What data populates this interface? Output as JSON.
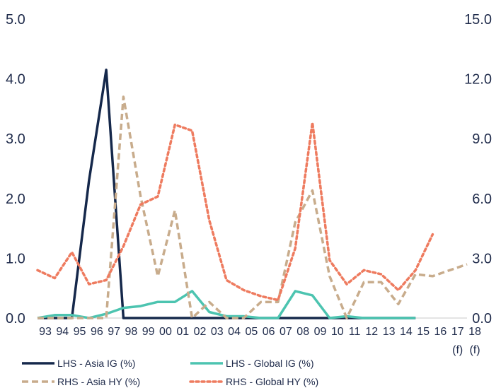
{
  "chart_data": {
    "type": "line",
    "categories": [
      "93",
      "94",
      "95",
      "96",
      "97",
      "98",
      "99",
      "00",
      "01",
      "02",
      "03",
      "04",
      "05",
      "06",
      "07",
      "08",
      "09",
      "10",
      "11",
      "12",
      "13",
      "14",
      "15",
      "16",
      "17",
      "18"
    ],
    "category_suffix": {
      "17": "(f)",
      "18": "(f)"
    },
    "left_axis": {
      "min": 0,
      "max": 5,
      "ticks": [
        "0.0",
        "1.0",
        "2.0",
        "3.0",
        "4.0",
        "5.0"
      ]
    },
    "right_axis": {
      "min": 0,
      "max": 15,
      "ticks": [
        "0.0",
        "3.0",
        "6.0",
        "9.0",
        "12.0",
        "15.0"
      ]
    },
    "grid": false,
    "legend_position": "bottom",
    "series": [
      {
        "name": "LHS - Asia IG (%)",
        "axis": "left",
        "color": "#15284b",
        "style": "solid",
        "values": [
          0,
          0,
          0,
          2.3,
          4.15,
          0,
          0,
          0,
          0,
          0,
          0,
          0,
          0,
          0,
          0,
          0,
          0,
          0,
          0,
          0,
          0,
          0,
          0,
          null,
          null,
          null
        ]
      },
      {
        "name": "LHS - Global IG (%)",
        "axis": "left",
        "color": "#4cc4b0",
        "style": "solid",
        "values": [
          0,
          0.05,
          0.05,
          0,
          0.07,
          0.17,
          0.2,
          0.27,
          0.27,
          0.45,
          0.1,
          0.03,
          0.03,
          0,
          0,
          0.45,
          0.38,
          0,
          0.03,
          0,
          0,
          0,
          0,
          null,
          null,
          null
        ]
      },
      {
        "name": "RHS - Asia HY (%)",
        "axis": "right",
        "color": "#c8ac8c",
        "style": "dashed",
        "values": [
          0,
          0,
          0,
          0,
          0,
          11.1,
          6.1,
          2.1,
          5.4,
          0,
          0.8,
          0,
          0,
          0.8,
          0.8,
          4.8,
          6.4,
          2.1,
          0,
          1.8,
          1.8,
          0.7,
          2.2,
          2.1,
          2.4,
          2.7
        ]
      },
      {
        "name": "RHS - Global HY (%)",
        "axis": "right",
        "color": "#ee7b5f",
        "style": "dotted",
        "values": [
          2.4,
          2.0,
          3.3,
          1.7,
          1.9,
          3.6,
          5.7,
          6.1,
          9.7,
          9.4,
          4.9,
          1.9,
          1.4,
          1.1,
          0.9,
          3.5,
          9.8,
          2.9,
          1.7,
          2.4,
          2.2,
          1.4,
          2.4,
          4.2,
          null,
          null
        ]
      }
    ]
  }
}
